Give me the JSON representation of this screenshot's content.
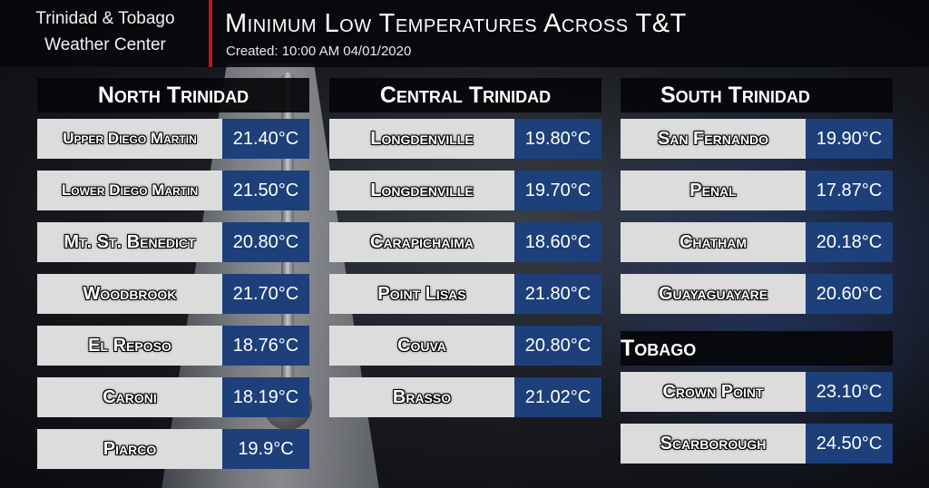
{
  "header": {
    "brand_line1": "Trinidad & Tobago",
    "brand_line2": "Weather Center",
    "title": "Minimum Low Temperatures Across T&T",
    "created": "Created: 10:00 AM 04/01/2020"
  },
  "north": {
    "title": "North Trinidad",
    "rows": [
      {
        "location": "Upper Diego Martin",
        "temp": "21.40°C"
      },
      {
        "location": "Lower Diego Martin",
        "temp": "21.50°C"
      },
      {
        "location": "Mt. St. Benedict",
        "temp": "20.80°C"
      },
      {
        "location": "Woodbrook",
        "temp": "21.70°C"
      },
      {
        "location": "El Reposo",
        "temp": "18.76°C"
      },
      {
        "location": "Caroni",
        "temp": "18.19°C"
      },
      {
        "location": "Piarco",
        "temp": "19.9°C"
      }
    ]
  },
  "central": {
    "title": "Central Trinidad",
    "rows": [
      {
        "location": "Longdenville",
        "temp": "19.80°C"
      },
      {
        "location": "Longdenville",
        "temp": "19.70°C"
      },
      {
        "location": "Carapichaima",
        "temp": "18.60°C"
      },
      {
        "location": "Point Lisas",
        "temp": "21.80°C"
      },
      {
        "location": "Couva",
        "temp": "20.80°C"
      },
      {
        "location": "Brasso",
        "temp": "21.02°C"
      }
    ]
  },
  "south": {
    "title": "South Trinidad",
    "rows": [
      {
        "location": "San Fernando",
        "temp": "19.90°C"
      },
      {
        "location": "Penal",
        "temp": "17.87°C"
      },
      {
        "location": "Chatham",
        "temp": "20.18°C"
      },
      {
        "location": "Guayaguayare",
        "temp": "20.60°C"
      }
    ]
  },
  "tobago": {
    "title": "Tobago",
    "rows": [
      {
        "location": "Crown Point",
        "temp": "23.10°C"
      },
      {
        "location": "Scarborough",
        "temp": "24.50°C"
      }
    ]
  },
  "colors": {
    "accent_red": "#c0121a",
    "temp_blue": "#1d3f7a",
    "location_grey": "#dcdcdc"
  }
}
